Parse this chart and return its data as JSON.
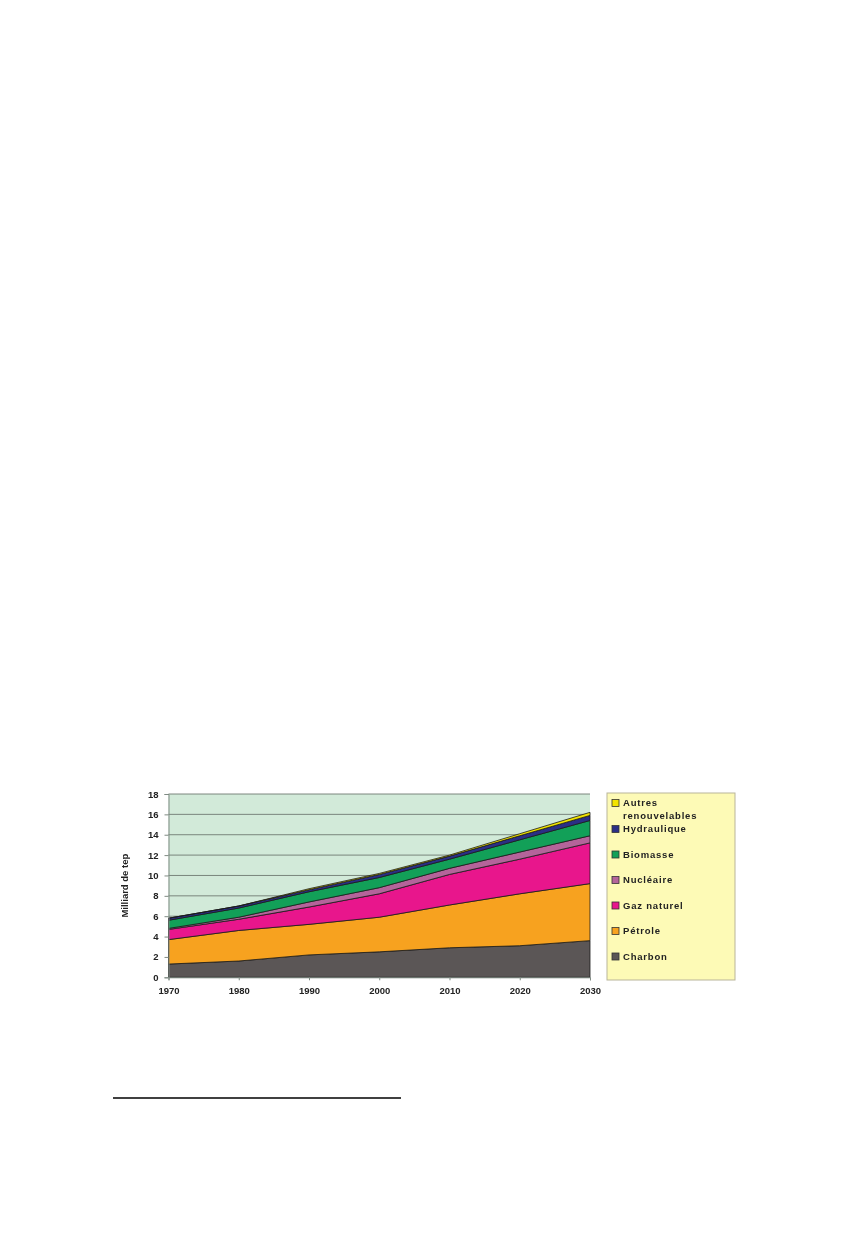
{
  "chart_data": {
    "type": "area",
    "stacked": true,
    "ylabel": "Milliard de tep",
    "x": [
      1970,
      1980,
      1990,
      2000,
      2010,
      2020,
      2030
    ],
    "xlim": [
      1970,
      2030
    ],
    "xticks": [
      1970,
      1980,
      1990,
      2000,
      2010,
      2020,
      2030
    ],
    "ylim": [
      0,
      18
    ],
    "yticks": [
      0,
      2,
      4,
      6,
      8,
      10,
      12,
      14,
      16,
      18
    ],
    "grid": "y",
    "legend": "right",
    "series": [
      {
        "name": "Charbon",
        "color": "#5b5656",
        "values": [
          1.3,
          1.6,
          2.2,
          2.5,
          2.9,
          3.1,
          3.6
        ]
      },
      {
        "name": "Pétrole",
        "color": "#f7a21f",
        "values": [
          2.4,
          3.0,
          3.0,
          3.4,
          4.2,
          5.1,
          5.6
        ]
      },
      {
        "name": "Gaz naturel",
        "color": "#e8168c",
        "values": [
          1.0,
          1.1,
          1.7,
          2.3,
          3.0,
          3.4,
          4.0
        ]
      },
      {
        "name": "Nucléaire",
        "color": "#b4649a",
        "values": [
          0.1,
          0.2,
          0.5,
          0.6,
          0.6,
          0.7,
          0.7
        ]
      },
      {
        "name": "Biomasse",
        "color": "#12a058",
        "values": [
          0.8,
          0.9,
          1.0,
          1.0,
          0.9,
          1.2,
          1.5
        ]
      },
      {
        "name": "Hydraulique",
        "color": "#2b2f86",
        "values": [
          0.2,
          0.2,
          0.2,
          0.3,
          0.3,
          0.4,
          0.5
        ]
      },
      {
        "name": "Autres renouvelables",
        "color": "#f2e400",
        "values": [
          0,
          0,
          0.1,
          0.1,
          0.1,
          0.2,
          0.3
        ]
      }
    ]
  }
}
